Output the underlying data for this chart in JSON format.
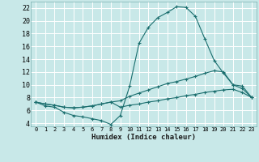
{
  "xlabel": "Humidex (Indice chaleur)",
  "bg_color": "#c8e8e8",
  "grid_color": "#ffffff",
  "line_color": "#1a6e6e",
  "xlim": [
    -0.5,
    23.5
  ],
  "ylim": [
    3.5,
    23.0
  ],
  "xticks": [
    0,
    1,
    2,
    3,
    4,
    5,
    6,
    7,
    8,
    9,
    10,
    11,
    12,
    13,
    14,
    15,
    16,
    17,
    18,
    19,
    20,
    21,
    22,
    23
  ],
  "yticks": [
    4,
    6,
    8,
    10,
    12,
    14,
    16,
    18,
    20,
    22
  ],
  "line1_x": [
    0,
    1,
    2,
    3,
    4,
    5,
    6,
    7,
    8,
    9,
    10,
    11,
    12,
    13,
    14,
    15,
    16,
    17,
    18,
    19,
    20,
    21,
    22,
    23
  ],
  "line1_y": [
    7.3,
    6.7,
    6.5,
    5.7,
    5.2,
    5.0,
    4.7,
    4.4,
    3.8,
    5.2,
    9.8,
    16.5,
    19.0,
    20.5,
    21.3,
    22.2,
    22.1,
    20.7,
    17.2,
    13.8,
    11.8,
    10.0,
    9.4,
    8.0
  ],
  "line2_x": [
    0,
    1,
    2,
    3,
    4,
    5,
    6,
    7,
    8,
    9,
    10,
    11,
    12,
    13,
    14,
    15,
    16,
    17,
    18,
    19,
    20,
    21,
    22,
    23
  ],
  "line2_y": [
    7.3,
    7.0,
    6.8,
    6.5,
    6.4,
    6.5,
    6.7,
    7.0,
    7.3,
    7.5,
    8.2,
    8.7,
    9.2,
    9.7,
    10.2,
    10.5,
    10.9,
    11.3,
    11.8,
    12.2,
    12.0,
    10.0,
    9.8,
    8.0
  ],
  "line3_x": [
    0,
    1,
    2,
    3,
    4,
    5,
    6,
    7,
    8,
    9,
    10,
    11,
    12,
    13,
    14,
    15,
    16,
    17,
    18,
    19,
    20,
    21,
    22,
    23
  ],
  "line3_y": [
    7.3,
    7.0,
    6.8,
    6.5,
    6.4,
    6.5,
    6.7,
    7.0,
    7.3,
    6.5,
    6.8,
    7.0,
    7.3,
    7.5,
    7.8,
    8.0,
    8.3,
    8.5,
    8.8,
    9.0,
    9.2,
    9.3,
    8.8,
    8.0
  ]
}
